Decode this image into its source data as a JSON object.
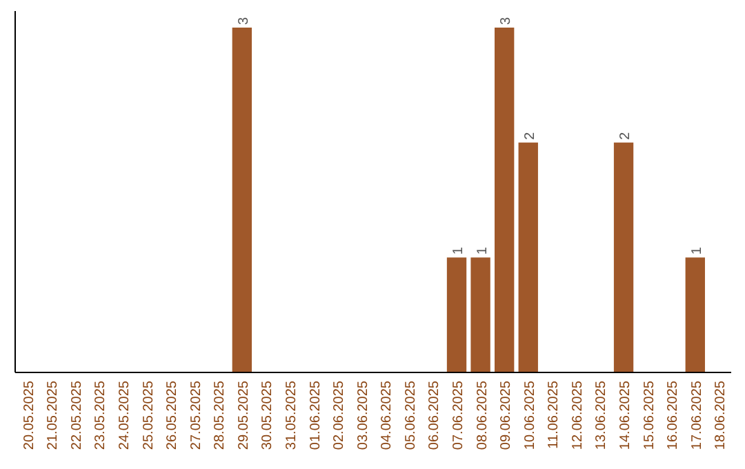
{
  "chart_data": {
    "type": "bar",
    "categories": [
      "20.05.2025",
      "21.05.2025",
      "22.05.2025",
      "23.05.2025",
      "24.05.2025",
      "25.05.2025",
      "26.05.2025",
      "27.05.2025",
      "28.05.2025",
      "29.05.2025",
      "30.05.2025",
      "31.05.2025",
      "01.06.2025",
      "02.06.2025",
      "03.06.2025",
      "04.06.2025",
      "05.06.2025",
      "06.06.2025",
      "07.06.2025",
      "08.06.2025",
      "09.06.2025",
      "10.06.2025",
      "11.06.2025",
      "12.06.2025",
      "13.06.2025",
      "14.06.2025",
      "15.06.2025",
      "16.06.2025",
      "17.06.2025",
      "18.06.2025"
    ],
    "values": [
      0,
      0,
      0,
      0,
      0,
      0,
      0,
      0,
      0,
      3,
      0,
      0,
      0,
      0,
      0,
      0,
      0,
      0,
      1,
      1,
      3,
      2,
      0,
      0,
      0,
      2,
      0,
      0,
      1,
      0
    ],
    "value_labels": [
      null,
      null,
      null,
      null,
      null,
      null,
      null,
      null,
      null,
      "3",
      null,
      null,
      null,
      null,
      null,
      null,
      null,
      null,
      "1",
      "1",
      "3",
      "2",
      null,
      null,
      null,
      "2",
      null,
      null,
      "1",
      null
    ],
    "color": "#a0582a"
  }
}
